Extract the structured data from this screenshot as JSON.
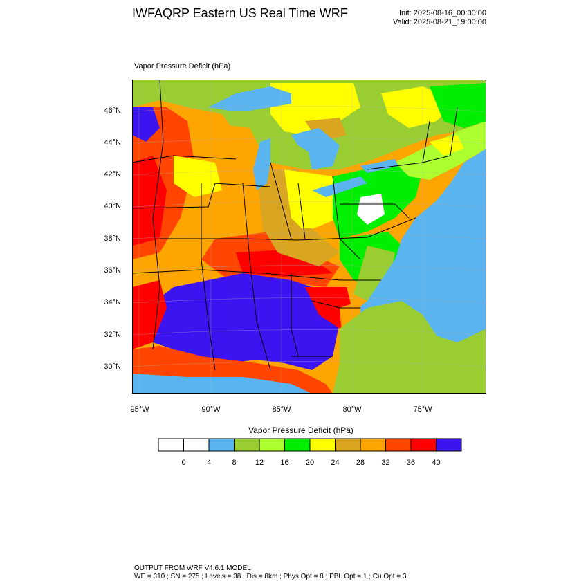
{
  "header": {
    "title": "IWFAQRP Eastern US Real Time WRF",
    "init": "Init: 2025-08-16_00:00:00",
    "valid": "Valid: 2025-08-21_19:00:00"
  },
  "map": {
    "variable_label": "Vapor Pressure Deficit   (hPa)",
    "projection": "lambert-conformal",
    "region": "Eastern United States",
    "lat_ticks": [
      "30°N",
      "32°N",
      "34°N",
      "36°N",
      "38°N",
      "40°N",
      "42°N",
      "44°N",
      "46°N"
    ],
    "lon_ticks": [
      "95°W",
      "90°W",
      "85°W",
      "80°W",
      "75°W"
    ],
    "colors": {
      "ocean": "#5ab4f0",
      "lakes": "#5ab4f0",
      "canada_land": "#9acd32",
      "borders": "#000000"
    }
  },
  "colorbar": {
    "title": "Vapor Pressure Deficit  (hPa)",
    "colors": [
      "#ffffff",
      "#ffffff",
      "#5ab4f0",
      "#9acd32",
      "#adff2f",
      "#00ee00",
      "#ffff00",
      "#daa520",
      "#ffa500",
      "#ff4500",
      "#ff0000",
      "#3c14f0"
    ],
    "labels": [
      "0",
      "4",
      "8",
      "12",
      "16",
      "20",
      "24",
      "28",
      "32",
      "36",
      "40"
    ]
  },
  "footer": {
    "line1": "OUTPUT FROM WRF V4.6.1 MODEL",
    "line2": "WE = 310 ; SN = 275 ; Levels = 38 ; Dis = 8km ; Phys Opt = 8 ; PBL Opt = 1 ; Cu Opt = 3"
  }
}
